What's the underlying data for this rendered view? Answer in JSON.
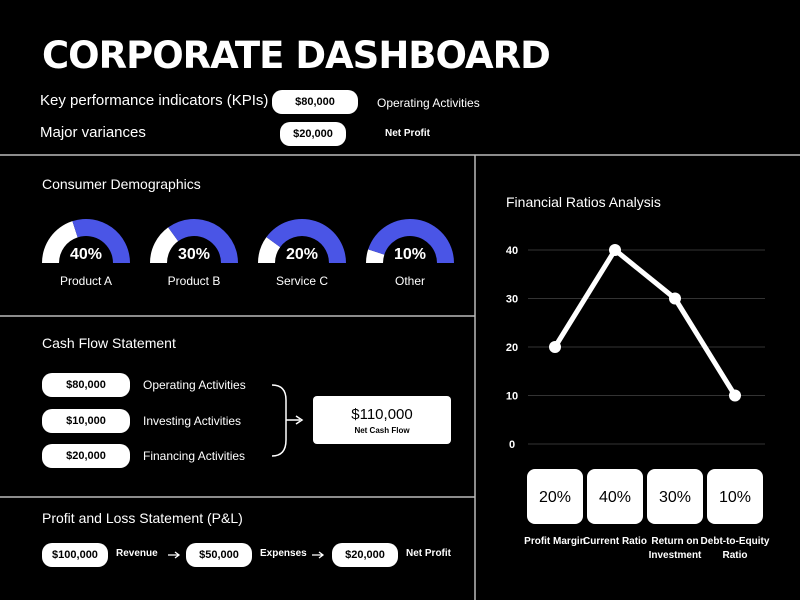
{
  "header": {
    "title": "CORPORATE DASHBOARD",
    "rows": [
      {
        "label": "Key performance indicators (KPIs)",
        "pill": "$80,000",
        "note": "Operating Activities"
      },
      {
        "label": "Major variances",
        "pill": "$20,000",
        "note": "Net Profit"
      }
    ]
  },
  "demographics": {
    "title": "Consumer Demographics",
    "categories": [
      "Product A",
      "Product B",
      "Service C",
      "Other"
    ],
    "values": [
      40,
      30,
      20,
      10
    ],
    "value_labels": [
      "40%",
      "30%",
      "20%",
      "10%"
    ],
    "color": "#4a55e6"
  },
  "cash_flow": {
    "title": "Cash Flow Statement",
    "items": [
      {
        "amount": "$80,000",
        "label": "Operating Activities"
      },
      {
        "amount": "$10,000",
        "label": "Investing Activities"
      },
      {
        "amount": "$20,000",
        "label": "Financing Activities"
      }
    ],
    "total": {
      "amount": "$110,000",
      "label": "Net Cash Flow"
    }
  },
  "pnl": {
    "title": "Profit and Loss Statement (P&L)",
    "items": [
      {
        "amount": "$100,000",
        "label": "Revenue"
      },
      {
        "amount": "$50,000",
        "label": "Expenses"
      },
      {
        "amount": "$20,000",
        "label": "Net Profit"
      }
    ]
  },
  "chart_data": {
    "type": "line",
    "title": "Financial Ratios Analysis",
    "categories": [
      "Profit Margin",
      "Current Ratio",
      "Return on Investment",
      "Debt-to-Equity Ratio"
    ],
    "values": [
      20,
      40,
      30,
      10
    ],
    "value_labels": [
      "20%",
      "40%",
      "30%",
      "10%"
    ],
    "ylim": [
      0,
      40
    ],
    "yticks": [
      0,
      10,
      20,
      30,
      40
    ],
    "grid": true,
    "color": "#ffffff"
  }
}
